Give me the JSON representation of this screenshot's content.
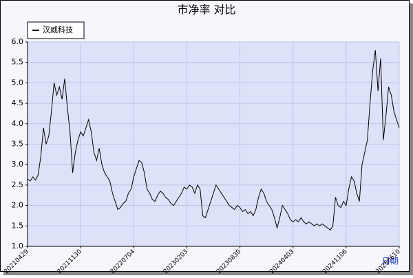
{
  "chart_data": {
    "type": "line",
    "title": "市净率  对比",
    "x_label": "日期",
    "categories": [
      "20210429",
      null,
      null,
      null,
      null,
      null,
      null,
      null,
      null,
      null,
      null,
      null,
      null,
      null,
      null,
      null,
      null,
      null,
      null,
      null,
      "20211130",
      null,
      null,
      null,
      null,
      null,
      null,
      null,
      null,
      null,
      null,
      null,
      null,
      null,
      null,
      null,
      null,
      null,
      null,
      null,
      "20220704",
      null,
      null,
      null,
      null,
      null,
      null,
      null,
      null,
      null,
      null,
      null,
      null,
      null,
      null,
      null,
      null,
      null,
      null,
      null,
      "20230203",
      null,
      null,
      null,
      null,
      null,
      null,
      null,
      null,
      null,
      null,
      null,
      null,
      null,
      null,
      null,
      null,
      null,
      null,
      null,
      "20230830",
      null,
      null,
      null,
      null,
      null,
      null,
      null,
      null,
      null,
      null,
      null,
      null,
      null,
      null,
      null,
      null,
      null,
      null,
      null,
      "20240403",
      null,
      null,
      null,
      null,
      null,
      null,
      null,
      null,
      null,
      null,
      null,
      null,
      null,
      null,
      null,
      null,
      null,
      null,
      null,
      "20241106",
      null,
      null,
      null,
      null,
      null,
      null,
      null,
      null,
      null,
      null,
      null,
      null,
      null,
      null,
      null,
      null,
      null,
      null,
      null,
      "20250610"
    ],
    "series": [
      {
        "name": "汉威科技",
        "color": "#000000",
        "values": [
          2.65,
          2.6,
          2.7,
          2.62,
          2.75,
          3.2,
          3.9,
          3.5,
          3.7,
          4.3,
          5.0,
          4.7,
          4.9,
          4.6,
          5.1,
          4.4,
          3.8,
          2.8,
          3.3,
          3.6,
          3.8,
          3.7,
          3.9,
          4.1,
          3.8,
          3.3,
          3.1,
          3.4,
          3.0,
          2.8,
          2.7,
          2.6,
          2.3,
          2.1,
          1.9,
          1.95,
          2.05,
          2.1,
          2.3,
          2.4,
          2.7,
          2.9,
          3.1,
          3.05,
          2.8,
          2.4,
          2.3,
          2.15,
          2.1,
          2.25,
          2.35,
          2.3,
          2.2,
          2.15,
          2.05,
          2.0,
          2.1,
          2.2,
          2.3,
          2.45,
          2.4,
          2.5,
          2.45,
          2.3,
          2.5,
          2.4,
          1.75,
          1.7,
          1.9,
          2.1,
          2.3,
          2.5,
          2.4,
          2.3,
          2.2,
          2.1,
          2.0,
          1.95,
          1.9,
          2.0,
          1.95,
          1.85,
          1.9,
          1.8,
          1.85,
          1.75,
          1.9,
          2.2,
          2.4,
          2.3,
          2.1,
          2.0,
          1.9,
          1.7,
          1.45,
          1.7,
          2.0,
          1.9,
          1.8,
          1.65,
          1.6,
          1.65,
          1.6,
          1.7,
          1.6,
          1.55,
          1.6,
          1.55,
          1.5,
          1.55,
          1.5,
          1.55,
          1.5,
          1.45,
          1.4,
          1.5,
          2.2,
          2.0,
          1.95,
          2.1,
          2.0,
          2.4,
          2.7,
          2.6,
          2.3,
          2.1,
          3.0,
          3.3,
          3.6,
          4.5,
          5.3,
          5.8,
          4.8,
          5.6,
          3.6,
          4.2,
          4.9,
          4.7,
          4.3,
          4.1,
          3.9
        ]
      }
    ],
    "ylim": [
      1,
      6
    ],
    "yticks": [
      {
        "value": 1,
        "label": "1.0"
      },
      {
        "value": 1.5,
        "label": "1.5"
      },
      {
        "value": 2,
        "label": "2.0"
      },
      {
        "value": 2.5,
        "label": "2.5"
      },
      {
        "value": 3,
        "label": "3.0"
      },
      {
        "value": 3.5,
        "label": "3.5"
      },
      {
        "value": 4,
        "label": "4.0"
      },
      {
        "value": 4.5,
        "label": "4.5"
      },
      {
        "value": 5,
        "label": "5.0"
      },
      {
        "value": 5.5,
        "label": "5.5"
      },
      {
        "value": 6,
        "label": "6.0"
      }
    ],
    "grid": true,
    "legend": "top-left"
  }
}
